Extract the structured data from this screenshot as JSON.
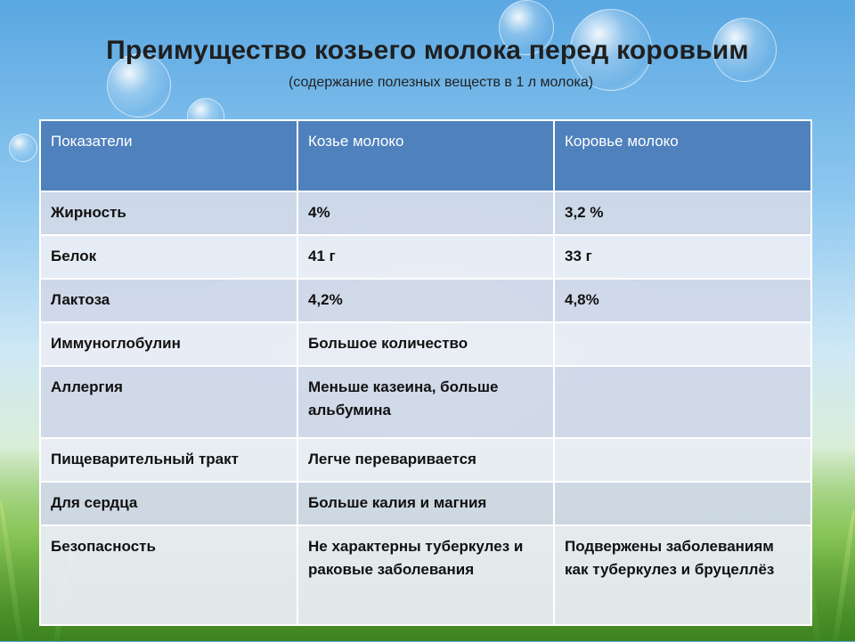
{
  "title": "Преимущество козьего молока перед коровьим",
  "subtitle": "(содержание полезных веществ в 1 л молока)",
  "table": {
    "headers": [
      "Показатели",
      "Козье молоко",
      "Коровье молоко"
    ],
    "rows": [
      [
        "Жирность",
        "4%",
        "3,2 %"
      ],
      [
        "Белок",
        "41 г",
        "33 г"
      ],
      [
        "Лактоза",
        "4,2%",
        "4,8%"
      ],
      [
        "Иммуноглобулин",
        "Большое количество",
        ""
      ],
      [
        "Аллергия",
        "Меньше казеина, больше альбумина",
        ""
      ],
      [
        "Пищеварительный тракт",
        "Легче переваривается",
        ""
      ],
      [
        "Для сердца",
        "Больше калия и магния",
        ""
      ],
      [
        "Безопасность",
        "Не характерны туберкулез и раковые заболевания",
        "Подвержены заболеваниям как туберкулез и бруцеллёз"
      ]
    ]
  }
}
